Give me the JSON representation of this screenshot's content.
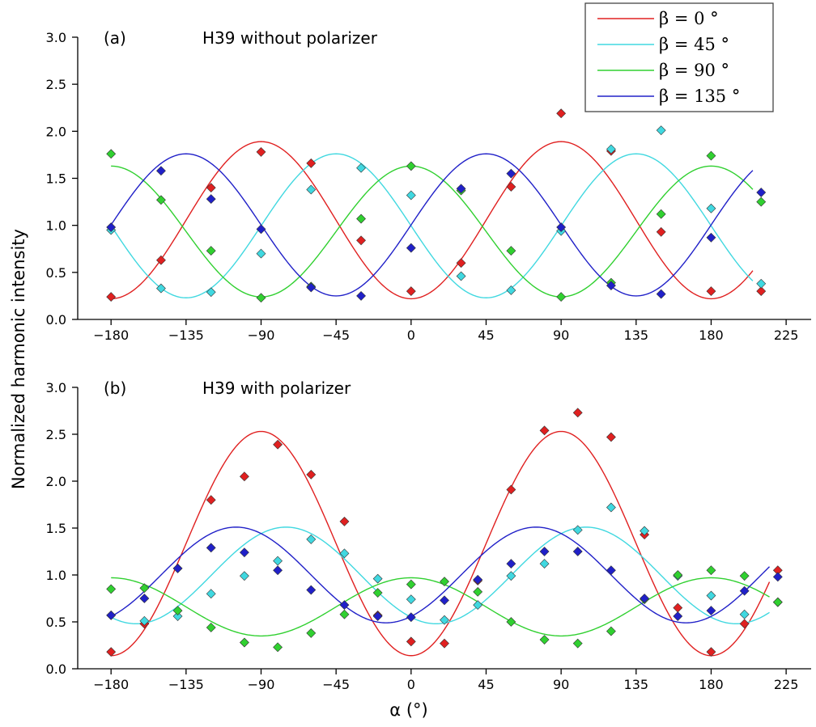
{
  "chart_data": [
    {
      "type": "scatter",
      "panel_label": "(a)",
      "title": "H39 without polarizer",
      "xlabel": "α (°)",
      "ylabel": "Normalized harmonic intensity",
      "xlim": [
        -200,
        240
      ],
      "ylim": [
        0,
        3.0
      ],
      "xticks": [
        -180,
        -135,
        -90,
        -45,
        0,
        45,
        90,
        135,
        180,
        225
      ],
      "xtick_labels": [
        "−180",
        "−135",
        "−90",
        "−45",
        "0",
        "45",
        "90",
        "135",
        "180",
        "225"
      ],
      "yticks": [
        0,
        0.5,
        1.0,
        1.5,
        2.0,
        2.5,
        3.0
      ],
      "ytick_labels": [
        "0.0",
        "0.5",
        "1.0",
        "1.5",
        "2.0",
        "2.5",
        "3.0"
      ],
      "fit_range": [
        -180,
        205
      ],
      "series": [
        {
          "name": "β = 0 °",
          "color": "#e02020",
          "x": [
            -180,
            -150,
            -120,
            -90,
            -60,
            -30,
            0,
            30,
            60,
            90,
            120,
            150,
            180,
            210
          ],
          "y": [
            0.24,
            0.63,
            1.4,
            1.78,
            1.66,
            0.84,
            0.3,
            0.6,
            1.41,
            2.19,
            1.79,
            0.93,
            0.3,
            0.3
          ],
          "fit": {
            "mean": 1.055,
            "amp": 0.835,
            "phase": 90
          }
        },
        {
          "name": "β = 45 °",
          "color": "#40d8e0",
          "x": [
            -180,
            -150,
            -120,
            -90,
            -60,
            -30,
            0,
            30,
            60,
            90,
            120,
            150,
            180,
            210
          ],
          "y": [
            0.95,
            0.33,
            0.29,
            0.7,
            1.38,
            1.61,
            1.32,
            0.46,
            0.31,
            0.94,
            1.81,
            2.01,
            1.18,
            0.38
          ],
          "fit": {
            "mean": 0.995,
            "amp": 0.765,
            "phase": 135
          }
        },
        {
          "name": "β = 90 °",
          "color": "#30d030",
          "x": [
            -180,
            -150,
            -120,
            -90,
            -60,
            -30,
            0,
            30,
            60,
            90,
            120,
            150,
            180,
            210
          ],
          "y": [
            1.76,
            1.27,
            0.73,
            0.23,
            0.35,
            1.07,
            1.63,
            1.37,
            0.73,
            0.24,
            0.39,
            1.12,
            1.74,
            1.25
          ],
          "fit": {
            "mean": 0.935,
            "amp": 0.695,
            "phase": 180
          }
        },
        {
          "name": "β = 135 °",
          "color": "#2020c8",
          "x": [
            -180,
            -150,
            -120,
            -90,
            -60,
            -30,
            0,
            30,
            60,
            90,
            120,
            150,
            180,
            210
          ],
          "y": [
            0.98,
            1.58,
            1.28,
            0.96,
            0.34,
            0.25,
            0.76,
            1.39,
            1.55,
            0.98,
            0.36,
            0.27,
            0.87,
            1.35
          ],
          "fit": {
            "mean": 1.005,
            "amp": 0.755,
            "phase": 45
          }
        }
      ]
    },
    {
      "type": "scatter",
      "panel_label": "(b)",
      "title": "H39 with polarizer",
      "xlabel": "α (°)",
      "ylabel": "Normalized harmonic intensity",
      "xlim": [
        -200,
        240
      ],
      "ylim": [
        0,
        3.0
      ],
      "xticks": [
        -180,
        -135,
        -90,
        -45,
        0,
        45,
        90,
        135,
        180,
        225
      ],
      "xtick_labels": [
        "−180",
        "−135",
        "−90",
        "−45",
        "0",
        "45",
        "90",
        "135",
        "180",
        "225"
      ],
      "yticks": [
        0,
        0.5,
        1.0,
        1.5,
        2.0,
        2.5,
        3.0
      ],
      "ytick_labels": [
        "0.0",
        "0.5",
        "1.0",
        "1.5",
        "2.0",
        "2.5",
        "3.0"
      ],
      "fit_range": [
        -180,
        215
      ],
      "series": [
        {
          "name": "β = 0 °",
          "color": "#e02020",
          "x": [
            -180,
            -160,
            -140,
            -120,
            -100,
            -80,
            -60,
            -40,
            -20,
            0,
            20,
            40,
            60,
            80,
            100,
            120,
            140,
            160,
            180,
            200,
            220
          ],
          "y": [
            0.18,
            0.48,
            1.07,
            1.8,
            2.05,
            2.39,
            2.07,
            1.57,
            0.57,
            0.29,
            0.27,
            0.94,
            1.91,
            2.54,
            2.73,
            2.47,
            1.43,
            0.65,
            0.18,
            0.48,
            1.05
          ],
          "fit": {
            "mean": 1.335,
            "amp": 1.195,
            "phase": 90
          }
        },
        {
          "name": "β = 45 °",
          "color": "#40d8e0",
          "x": [
            -180,
            -160,
            -140,
            -120,
            -100,
            -80,
            -60,
            -40,
            -20,
            0,
            20,
            40,
            60,
            80,
            100,
            120,
            140,
            160,
            180,
            200,
            220
          ],
          "y": [
            0.57,
            0.51,
            0.56,
            0.8,
            0.99,
            1.15,
            1.38,
            1.23,
            0.96,
            0.74,
            0.52,
            0.68,
            0.99,
            1.12,
            1.48,
            1.72,
            1.47,
            0.99,
            0.78,
            0.58,
            0.71
          ],
          "fit": {
            "mean": 0.995,
            "amp": 0.515,
            "phase": 105
          }
        },
        {
          "name": "β = 90 °",
          "color": "#30d030",
          "x": [
            -180,
            -160,
            -140,
            -120,
            -100,
            -80,
            -60,
            -40,
            -20,
            0,
            20,
            40,
            60,
            80,
            100,
            120,
            140,
            160,
            180,
            200,
            220
          ],
          "y": [
            0.85,
            0.86,
            0.62,
            0.44,
            0.28,
            0.23,
            0.38,
            0.58,
            0.81,
            0.9,
            0.93,
            0.82,
            0.5,
            0.31,
            0.27,
            0.4,
            0.74,
            1.0,
            1.05,
            0.99,
            0.71
          ],
          "fit": {
            "mean": 0.66,
            "amp": 0.31,
            "phase": 180
          }
        },
        {
          "name": "β = 135 °",
          "color": "#2020c8",
          "x": [
            -180,
            -160,
            -140,
            -120,
            -100,
            -80,
            -60,
            -40,
            -20,
            0,
            20,
            40,
            60,
            80,
            100,
            120,
            140,
            160,
            180,
            200,
            220
          ],
          "y": [
            0.57,
            0.75,
            1.07,
            1.29,
            1.24,
            1.05,
            0.84,
            0.68,
            0.56,
            0.55,
            0.73,
            0.95,
            1.12,
            1.25,
            1.25,
            1.05,
            0.75,
            0.56,
            0.62,
            0.83,
            0.98
          ],
          "fit": {
            "mean": 1.0,
            "amp": 0.51,
            "phase": 75
          }
        }
      ]
    }
  ],
  "legend": {
    "entries": [
      "β = 0 °",
      "β = 45 °",
      "β = 90 °",
      "β = 135 °"
    ],
    "colors": [
      "#e02020",
      "#40d8e0",
      "#30d030",
      "#2020c8"
    ],
    "placement": "top-right"
  },
  "axis_labels": {
    "y": "Normalized harmonic intensity",
    "x": "α (°)"
  }
}
